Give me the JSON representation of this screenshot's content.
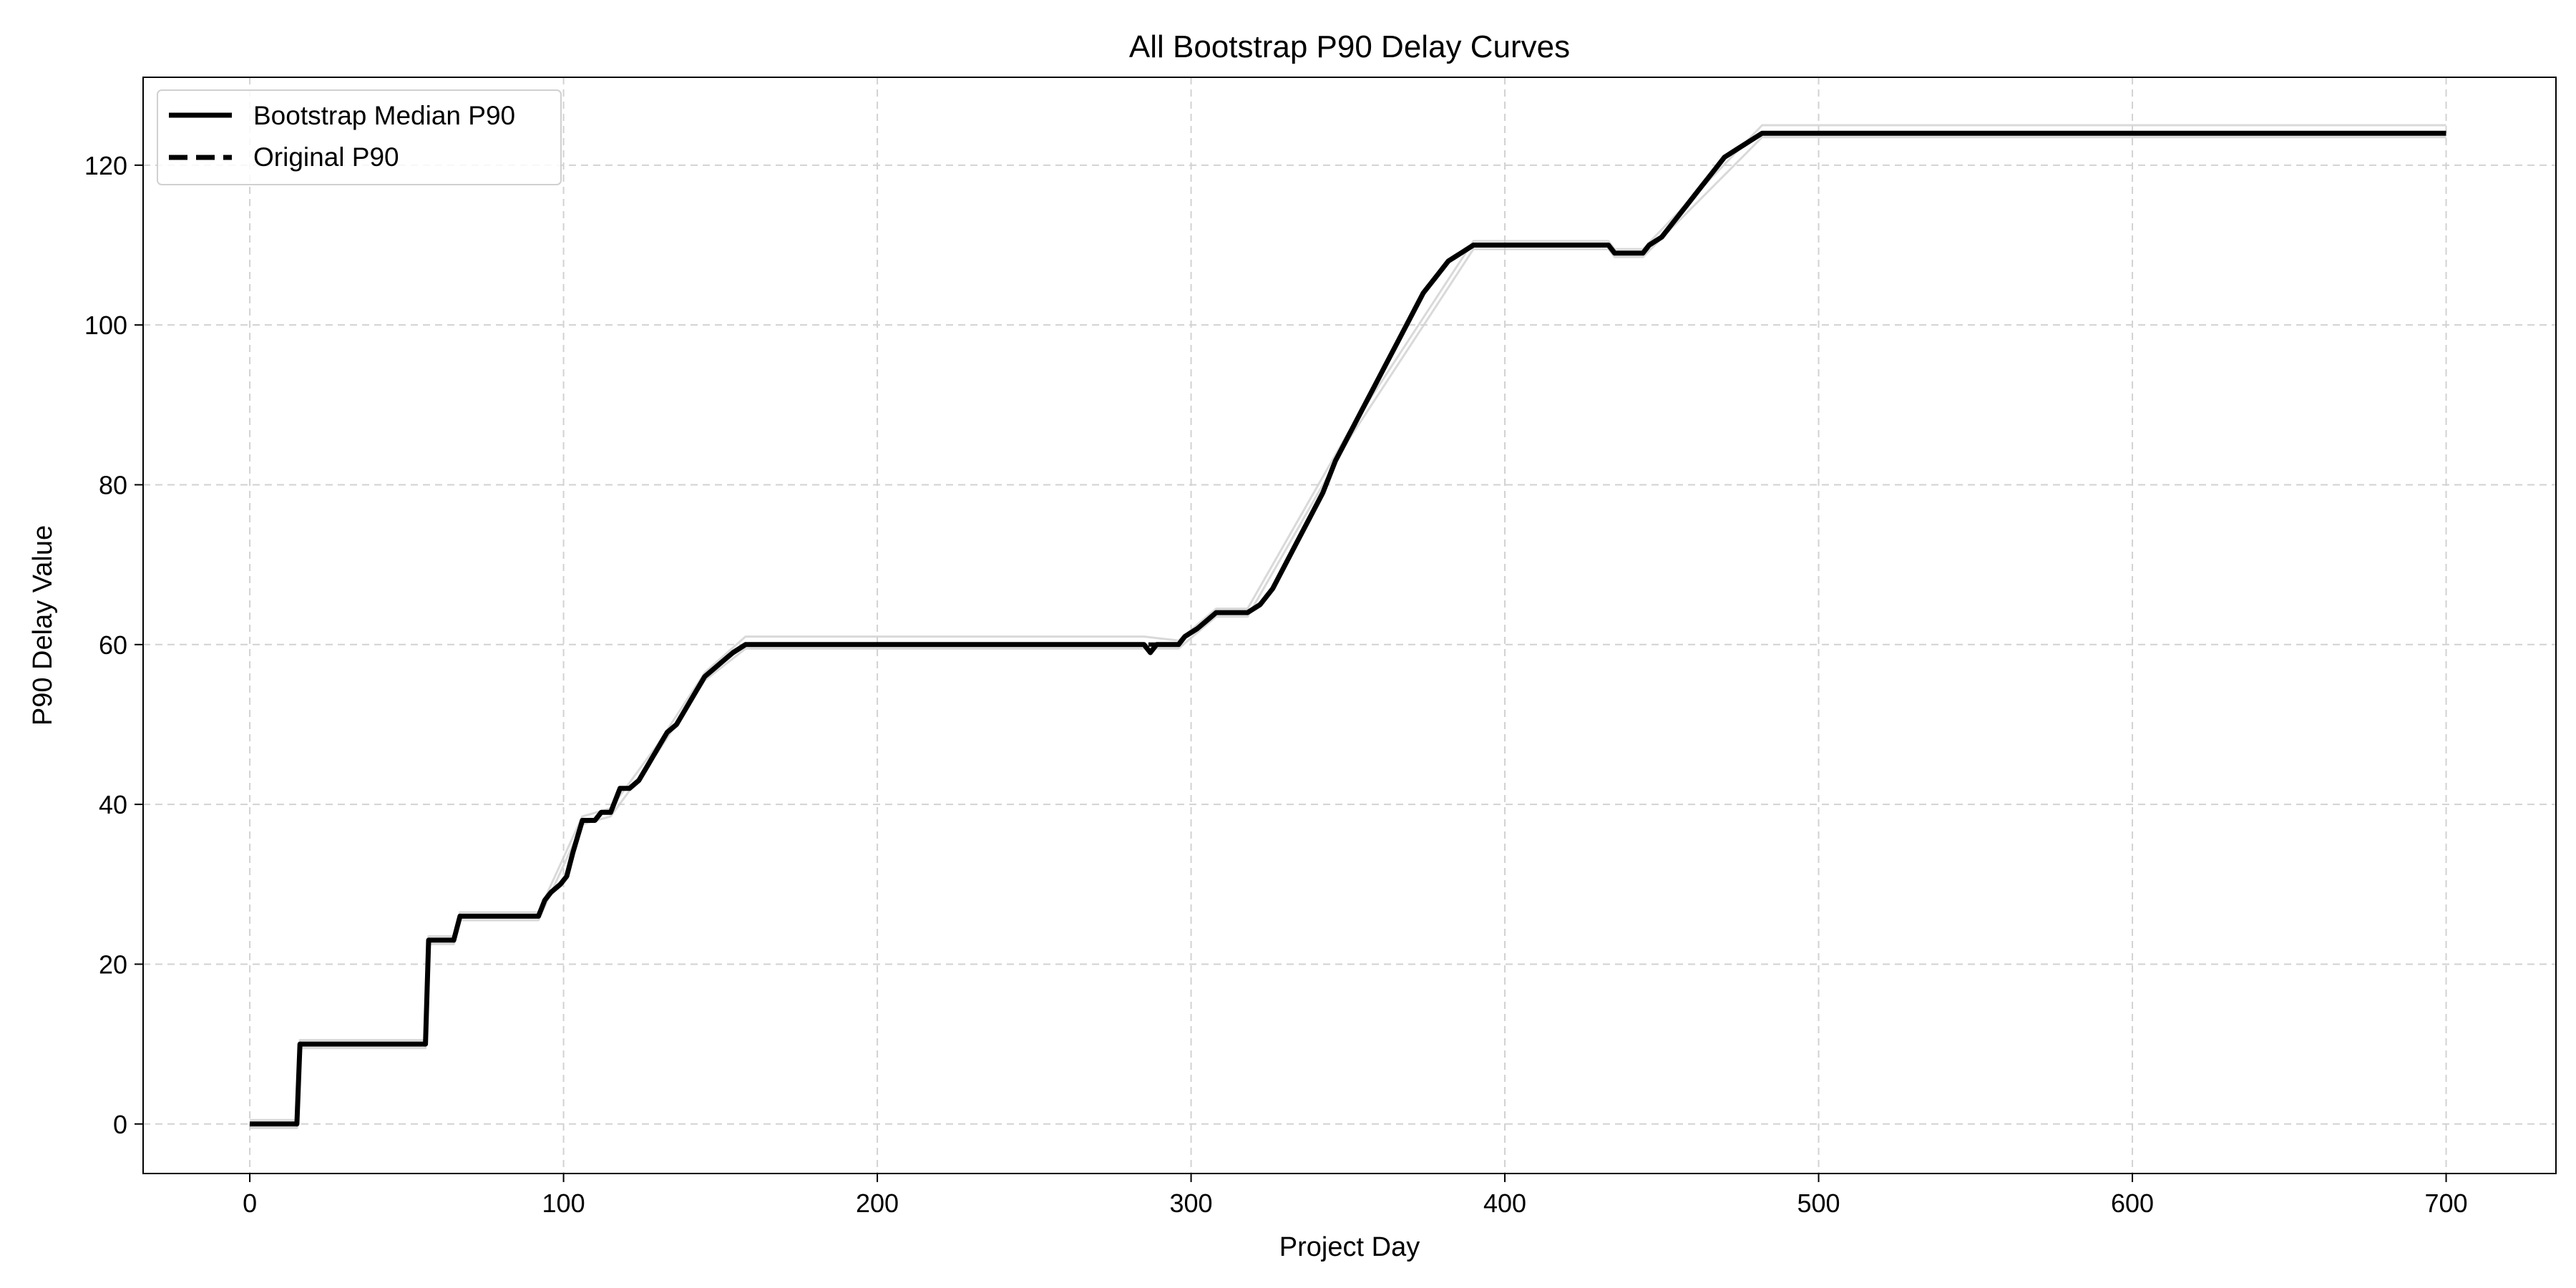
{
  "chart_data": {
    "type": "line",
    "title": "All Bootstrap P90 Delay Curves",
    "xlabel": "Project Day",
    "ylabel": "P90 Delay Value",
    "xlim": [
      -34,
      735
    ],
    "ylim": [
      -6.2,
      131
    ],
    "x_ticks": [
      0,
      100,
      200,
      300,
      400,
      500,
      600,
      700
    ],
    "y_ticks": [
      0,
      20,
      40,
      60,
      80,
      100,
      120
    ],
    "grid": true,
    "grid_style": "dashed",
    "legend_position": "top-left",
    "series": [
      {
        "name": "Bootstrap Median P90",
        "style": "solid",
        "color": "#000000",
        "points": [
          [
            0,
            0
          ],
          [
            15,
            0
          ],
          [
            16,
            10
          ],
          [
            56,
            10
          ],
          [
            57,
            23
          ],
          [
            65,
            23
          ],
          [
            67,
            26
          ],
          [
            92,
            26
          ],
          [
            94,
            28
          ],
          [
            96,
            29
          ],
          [
            99,
            30
          ],
          [
            101,
            31
          ],
          [
            103,
            34
          ],
          [
            106,
            38
          ],
          [
            110,
            38
          ],
          [
            112,
            39
          ],
          [
            115,
            39
          ],
          [
            118,
            42
          ],
          [
            121,
            42
          ],
          [
            124,
            43
          ],
          [
            127,
            45
          ],
          [
            130,
            47
          ],
          [
            133,
            49
          ],
          [
            136,
            50
          ],
          [
            139,
            52
          ],
          [
            142,
            54
          ],
          [
            145,
            56
          ],
          [
            148,
            57
          ],
          [
            151,
            58
          ],
          [
            154,
            59
          ],
          [
            158,
            60
          ],
          [
            285,
            60
          ],
          [
            287,
            59
          ],
          [
            289,
            60
          ],
          [
            296,
            60
          ],
          [
            298,
            61
          ],
          [
            302,
            62
          ],
          [
            305,
            63
          ],
          [
            308,
            64
          ],
          [
            318,
            64
          ],
          [
            322,
            65
          ],
          [
            326,
            67
          ],
          [
            330,
            70
          ],
          [
            334,
            73
          ],
          [
            338,
            76
          ],
          [
            342,
            79
          ],
          [
            346,
            83
          ],
          [
            350,
            86
          ],
          [
            354,
            89
          ],
          [
            358,
            92
          ],
          [
            362,
            95
          ],
          [
            366,
            98
          ],
          [
            370,
            101
          ],
          [
            374,
            104
          ],
          [
            378,
            106
          ],
          [
            382,
            108
          ],
          [
            386,
            109
          ],
          [
            390,
            110
          ],
          [
            433,
            110
          ],
          [
            435,
            109
          ],
          [
            444,
            109
          ],
          [
            446,
            110
          ],
          [
            450,
            111
          ],
          [
            454,
            113
          ],
          [
            458,
            115
          ],
          [
            462,
            117
          ],
          [
            466,
            119
          ],
          [
            470,
            121
          ],
          [
            474,
            122
          ],
          [
            478,
            123
          ],
          [
            482,
            124
          ],
          [
            700,
            124
          ]
        ]
      },
      {
        "name": "Original P90",
        "style": "dashed",
        "color": "#000000",
        "points": [
          [
            0,
            0
          ],
          [
            15,
            0
          ],
          [
            16,
            10
          ],
          [
            56,
            10
          ],
          [
            57,
            23
          ],
          [
            65,
            23
          ],
          [
            67,
            26
          ],
          [
            92,
            26
          ],
          [
            94,
            28
          ],
          [
            96,
            29
          ],
          [
            99,
            30
          ],
          [
            101,
            31
          ],
          [
            103,
            34
          ],
          [
            106,
            38
          ],
          [
            110,
            38
          ],
          [
            112,
            39
          ],
          [
            115,
            39
          ],
          [
            118,
            42
          ],
          [
            121,
            42
          ],
          [
            124,
            43
          ],
          [
            127,
            45
          ],
          [
            130,
            47
          ],
          [
            133,
            49
          ],
          [
            136,
            50
          ],
          [
            139,
            52
          ],
          [
            142,
            54
          ],
          [
            145,
            56
          ],
          [
            148,
            57
          ],
          [
            151,
            58
          ],
          [
            154,
            59
          ],
          [
            158,
            60
          ],
          [
            296,
            60
          ],
          [
            298,
            61
          ],
          [
            302,
            62
          ],
          [
            305,
            63
          ],
          [
            308,
            64
          ],
          [
            318,
            64
          ],
          [
            322,
            65
          ],
          [
            326,
            67
          ],
          [
            330,
            70
          ],
          [
            334,
            73
          ],
          [
            338,
            76
          ],
          [
            342,
            79
          ],
          [
            346,
            83
          ],
          [
            350,
            86
          ],
          [
            354,
            89
          ],
          [
            358,
            92
          ],
          [
            362,
            95
          ],
          [
            366,
            98
          ],
          [
            370,
            101
          ],
          [
            374,
            104
          ],
          [
            378,
            106
          ],
          [
            382,
            108
          ],
          [
            386,
            109
          ],
          [
            390,
            110
          ],
          [
            433,
            110
          ],
          [
            435,
            109
          ],
          [
            444,
            109
          ],
          [
            446,
            110
          ],
          [
            450,
            111
          ],
          [
            454,
            113
          ],
          [
            458,
            115
          ],
          [
            462,
            117
          ],
          [
            466,
            119
          ],
          [
            470,
            121
          ],
          [
            474,
            122
          ],
          [
            478,
            123
          ],
          [
            482,
            124
          ],
          [
            700,
            124
          ]
        ]
      },
      {
        "style": "faint",
        "color": "#cfcfcf",
        "points": [
          [
            0,
            0.5
          ],
          [
            15,
            0.5
          ],
          [
            16,
            10.5
          ],
          [
            56,
            10.5
          ],
          [
            57,
            23.5
          ],
          [
            65,
            23.5
          ],
          [
            67,
            26.5
          ],
          [
            92,
            26.5
          ],
          [
            106,
            38.5
          ],
          [
            115,
            39.5
          ],
          [
            130,
            47.5
          ],
          [
            145,
            56.5
          ],
          [
            158,
            61
          ],
          [
            285,
            61
          ],
          [
            296,
            60.5
          ],
          [
            308,
            64.5
          ],
          [
            318,
            64.5
          ],
          [
            350,
            86.5
          ],
          [
            390,
            110.5
          ],
          [
            433,
            110.5
          ],
          [
            435,
            109.5
          ],
          [
            444,
            109.5
          ],
          [
            482,
            125
          ],
          [
            700,
            125
          ]
        ]
      },
      {
        "style": "faint",
        "color": "#cfcfcf",
        "points": [
          [
            0,
            -0.5
          ],
          [
            15,
            -0.5
          ],
          [
            16,
            9.5
          ],
          [
            56,
            9.5
          ],
          [
            57,
            22.5
          ],
          [
            65,
            22.5
          ],
          [
            67,
            25.5
          ],
          [
            92,
            25.5
          ],
          [
            106,
            37.5
          ],
          [
            115,
            38.5
          ],
          [
            130,
            46.5
          ],
          [
            145,
            55.5
          ],
          [
            158,
            59.5
          ],
          [
            296,
            59.5
          ],
          [
            308,
            63.5
          ],
          [
            318,
            63.5
          ],
          [
            350,
            85.5
          ],
          [
            390,
            109.5
          ],
          [
            433,
            109.5
          ],
          [
            435,
            108.5
          ],
          [
            444,
            108.5
          ],
          [
            482,
            123.5
          ],
          [
            700,
            123.5
          ]
        ]
      }
    ]
  }
}
